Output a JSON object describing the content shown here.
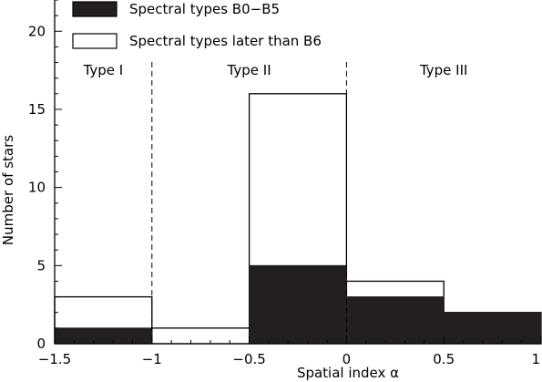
{
  "chart_data": {
    "type": "bar",
    "xlabel": "Spatial index α",
    "ylabel": "Number of stars",
    "xlim": [
      -1.5,
      1
    ],
    "ylim": [
      0,
      22
    ],
    "x_ticks": [
      -1.5,
      -1,
      -0.5,
      0,
      0.5,
      1
    ],
    "x_tick_labels": [
      "−1.5",
      "−1",
      "−0.5",
      "0",
      "0.5",
      "1"
    ],
    "y_ticks": [
      0,
      5,
      10,
      15,
      20
    ],
    "y_tick_labels": [
      "0",
      "5",
      "10",
      "15",
      "20"
    ],
    "bin_edges": [
      -1.5,
      -1,
      -0.5,
      0,
      0.5,
      1
    ],
    "series": [
      {
        "name": "Spectral types later than B6",
        "style": "outline",
        "color": "#000000",
        "values": [
          3,
          1,
          16,
          4,
          2
        ]
      },
      {
        "name": "Spectral types B0−B5",
        "style": "filled",
        "color": "#231f20",
        "values": [
          1,
          0,
          5,
          3,
          2
        ]
      }
    ],
    "legend": {
      "position": "top-left",
      "entries": [
        {
          "label": "Spectral types B0−B5",
          "style": "filled"
        },
        {
          "label": "Spectral types later than B6",
          "style": "outline"
        }
      ]
    },
    "dividers": [
      -1,
      0
    ],
    "annotations": [
      {
        "text": "Type I",
        "x": -1.25,
        "y": 17.5
      },
      {
        "text": "Type II",
        "x": -0.5,
        "y": 17.5
      },
      {
        "text": "Type III",
        "x": 0.5,
        "y": 17.5
      }
    ],
    "grid": false
  }
}
